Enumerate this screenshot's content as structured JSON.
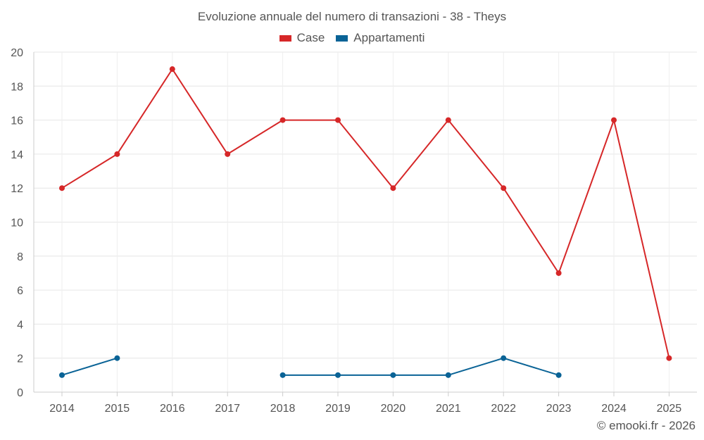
{
  "chart_data": {
    "type": "line",
    "title": "Evoluzione annuale del numero di transazioni - 38 - Theys",
    "categories": [
      "2014",
      "2015",
      "2016",
      "2017",
      "2018",
      "2019",
      "2020",
      "2021",
      "2022",
      "2023",
      "2024",
      "2025"
    ],
    "y_ticks": [
      "0",
      "2",
      "4",
      "6",
      "8",
      "10",
      "12",
      "14",
      "16",
      "18",
      "20"
    ],
    "ylim": [
      0,
      20
    ],
    "xlabel": "",
    "ylabel": "",
    "grid": true,
    "legend_position": "top-center",
    "series": [
      {
        "name": "Case",
        "color": "#d62728",
        "values": [
          12,
          14,
          19,
          14,
          16,
          16,
          12,
          16,
          12,
          7,
          16,
          2
        ]
      },
      {
        "name": "Appartamenti",
        "color": "#0a6396",
        "values": [
          1,
          2,
          null,
          null,
          1,
          1,
          1,
          1,
          2,
          1,
          null,
          null
        ]
      }
    ]
  },
  "credit": "© emooki.fr - 2026"
}
